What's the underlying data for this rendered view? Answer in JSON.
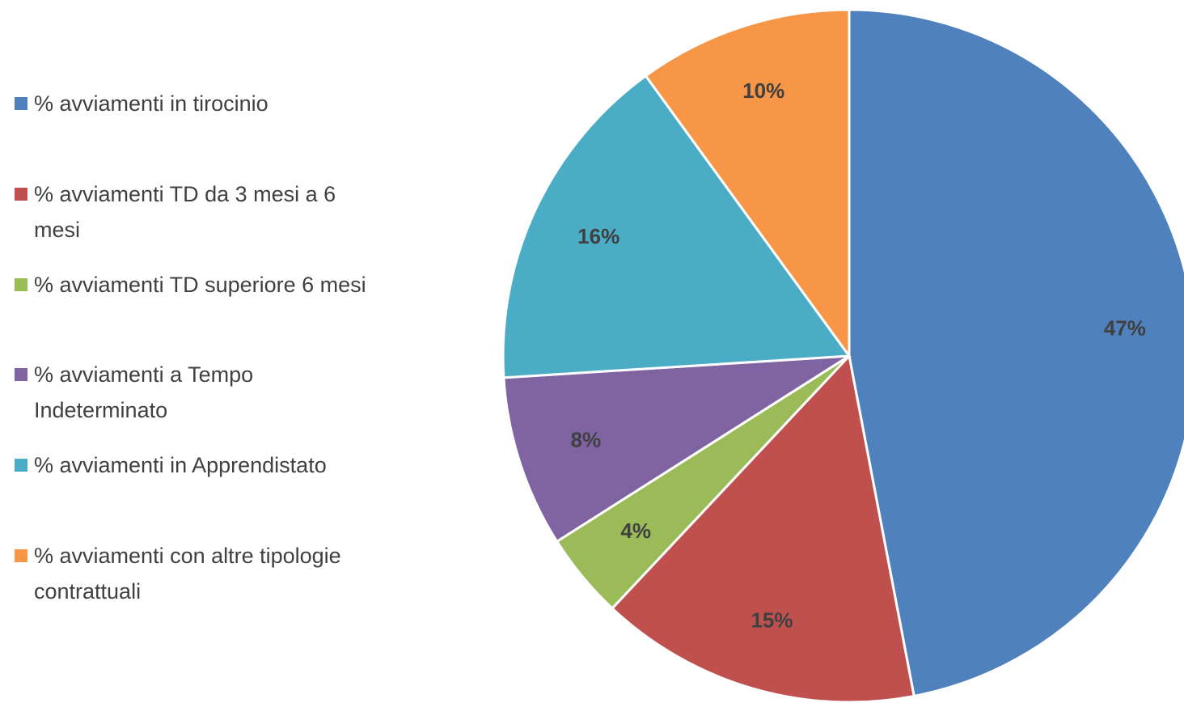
{
  "chart_data": {
    "type": "pie",
    "categories": [
      "% avviamenti in tirocinio",
      "% avviamenti TD da 3 mesi a 6 mesi",
      "% avviamenti TD superiore 6 mesi",
      "% avviamenti a Tempo Indeterminato",
      "% avviamenti in Apprendistato",
      "% avviamenti con altre tipologie contrattuali"
    ],
    "values": [
      47,
      15,
      4,
      8,
      16,
      10
    ],
    "value_labels": [
      "47%",
      "15%",
      "4%",
      "8%",
      "16%",
      "10%"
    ],
    "colors": [
      "#4f81bd",
      "#c0504d",
      "#9bbb59",
      "#8064a2",
      "#4bacc6",
      "#f79646"
    ],
    "legend": "left"
  }
}
